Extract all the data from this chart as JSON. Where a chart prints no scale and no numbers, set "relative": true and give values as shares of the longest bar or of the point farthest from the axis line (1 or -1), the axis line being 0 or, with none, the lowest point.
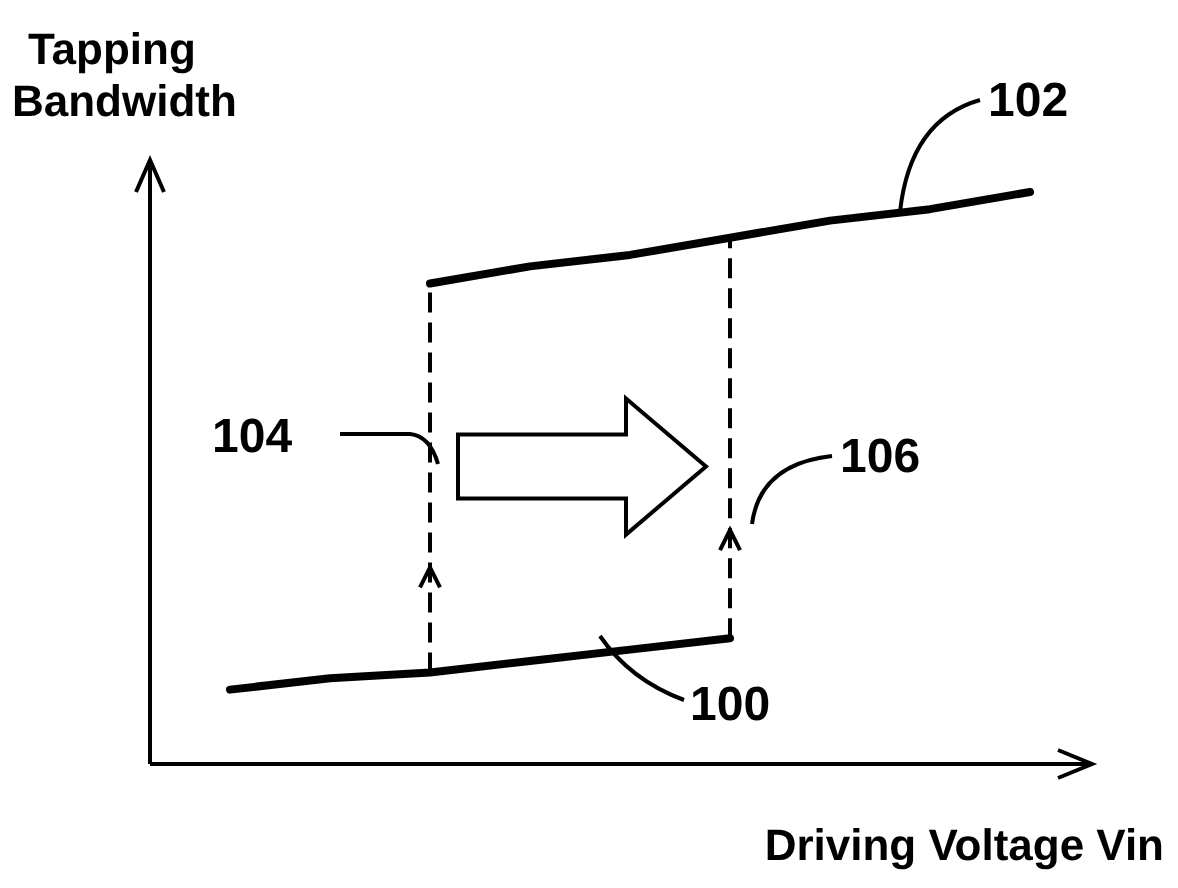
{
  "chart_data": {
    "type": "line",
    "relative": true,
    "ylabel": "Tapping\nBandwidth",
    "xlabel": "Driving Voltage Vin",
    "categories": [
      null,
      null,
      null,
      null,
      null,
      null,
      null,
      null,
      null
    ],
    "series": [
      {
        "color": "#000000",
        "values": [
          0.13,
          0.15,
          0.16,
          0.18,
          0.2,
          0.22,
          null,
          null,
          null
        ]
      },
      {
        "color": "#000000",
        "values": [
          null,
          null,
          0.84,
          0.87,
          0.89,
          0.92,
          0.95,
          0.97,
          1.0
        ]
      }
    ],
    "annotations": [
      "100",
      "102",
      "104",
      "106"
    ]
  }
}
